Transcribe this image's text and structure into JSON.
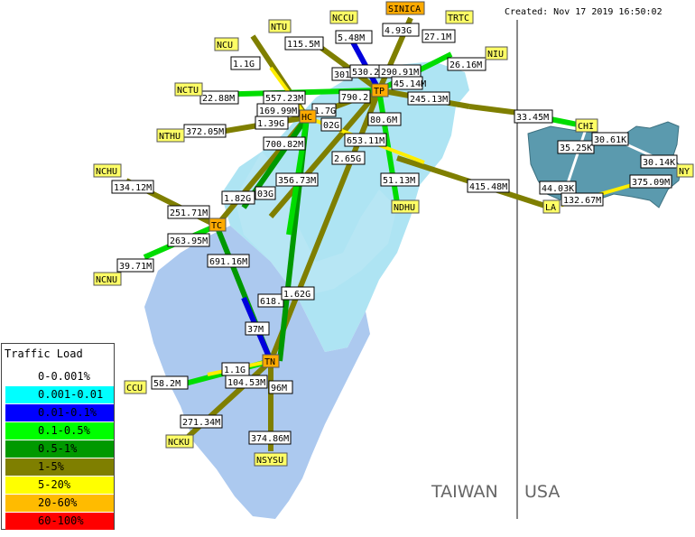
{
  "created": "Created: Nov 17 2019 16:50:02",
  "countries": {
    "taiwan": "TAIWAN",
    "usa": "USA"
  },
  "legend": {
    "title": "Traffic Load",
    "items": [
      {
        "range": "0-0.001%",
        "color": "#ffffff"
      },
      {
        "range": "0.001-0.01",
        "color": "#00ffff"
      },
      {
        "range": "0.01-0.1%",
        "color": "#0000ff"
      },
      {
        "range": "0.1-0.5%",
        "color": "#00ff00"
      },
      {
        "range": "0.5-1%",
        "color": "#009900"
      },
      {
        "range": "1-5%",
        "color": "#7f7f00"
      },
      {
        "range": "5-20%",
        "color": "#ffff00"
      },
      {
        "range": "20-60%",
        "color": "#ffbb00"
      },
      {
        "range": "60-100%",
        "color": "#ff0000"
      }
    ]
  },
  "nodes": {
    "NTU": "NTU",
    "NCCU": "NCCU",
    "SINICA": "SINICA",
    "TRTC": "TRTC",
    "NIU": "NIU",
    "NCU": "NCU",
    "NCTU": "NCTU",
    "NTHU": "NTHU",
    "HC": "HC",
    "TP": "TP",
    "NCHU": "NCHU",
    "TC": "TC",
    "NCNU": "NCNU",
    "NDHU": "NDHU",
    "CHI": "CHI",
    "NY": "NY",
    "LA": "LA",
    "TN": "TN",
    "CCU": "CCU",
    "NCKU": "NCKU",
    "NSYSU": "NSYSU"
  },
  "link_labels": {
    "ntu": "115.5M",
    "nccu": "5.48M",
    "sinica": "4.93G",
    "trtc": "27.1M",
    "niu": "26.16M",
    "ncu": "1.1G",
    "nctu": "22.88M",
    "l557": "557.23M",
    "l169": "169.99M",
    "l1_7": "1.7G",
    "l1_39": "1.39G",
    "nthu": "372.05M",
    "l301": "301",
    "l530": "530.2",
    "l290": "290.91M",
    "l45": "45.14M",
    "l790": "790.2",
    "l245": "245.13M",
    "chi_link": "33.45M",
    "l80": "80.6M",
    "l02": "02G",
    "l700": "700.82M",
    "l653": "653.11M",
    "l2_65": "2.65G",
    "l356": "356.73M",
    "l03": "03G",
    "l1_82": "1.82G",
    "l51": "51.13M",
    "l415": "415.48M",
    "nchu": "134.12M",
    "l251": "251.71M",
    "l263": "263.95M",
    "ncnu": "39.71M",
    "l691": "691.16M",
    "l618": "618.",
    "l1_62": "1.62G",
    "l37": "37M",
    "ccu1": "1.1G",
    "ccu2": "58.2M",
    "l104": "104.53M",
    "l96": "96M",
    "ncku": "271.34M",
    "nsysu": "374.86M",
    "us35": "35.25K",
    "us30a": "30.61K",
    "us30b": "30.14K",
    "us44": "44.03K",
    "us375": "375.09M",
    "us132": "132.67M"
  }
}
